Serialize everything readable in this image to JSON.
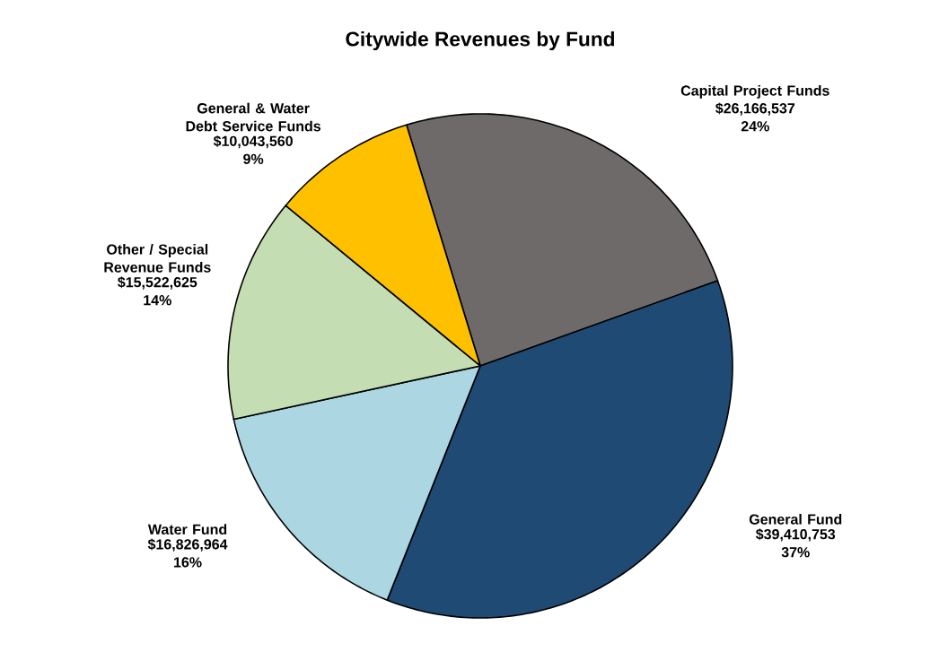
{
  "chart_data": {
    "type": "pie",
    "title": "Citywide Revenues by Fund",
    "categories": [
      "Capital Project Funds",
      "General Fund",
      "Water Fund",
      "Other / Special Revenue Funds",
      "General & Water Debt Service Funds"
    ],
    "values": [
      26166537,
      39410753,
      16826964,
      15522625,
      10043560
    ],
    "value_labels": [
      "$26,166,537 24%",
      "$39,410,753 37%",
      "$16,826,964 16%",
      "$15,522,625 14%",
      "$10,043,560 9%"
    ],
    "colors": [
      "#6f6a6a",
      "#1f4a74",
      "#abd6e2",
      "#c5ddb2",
      "#ffc000"
    ]
  }
}
